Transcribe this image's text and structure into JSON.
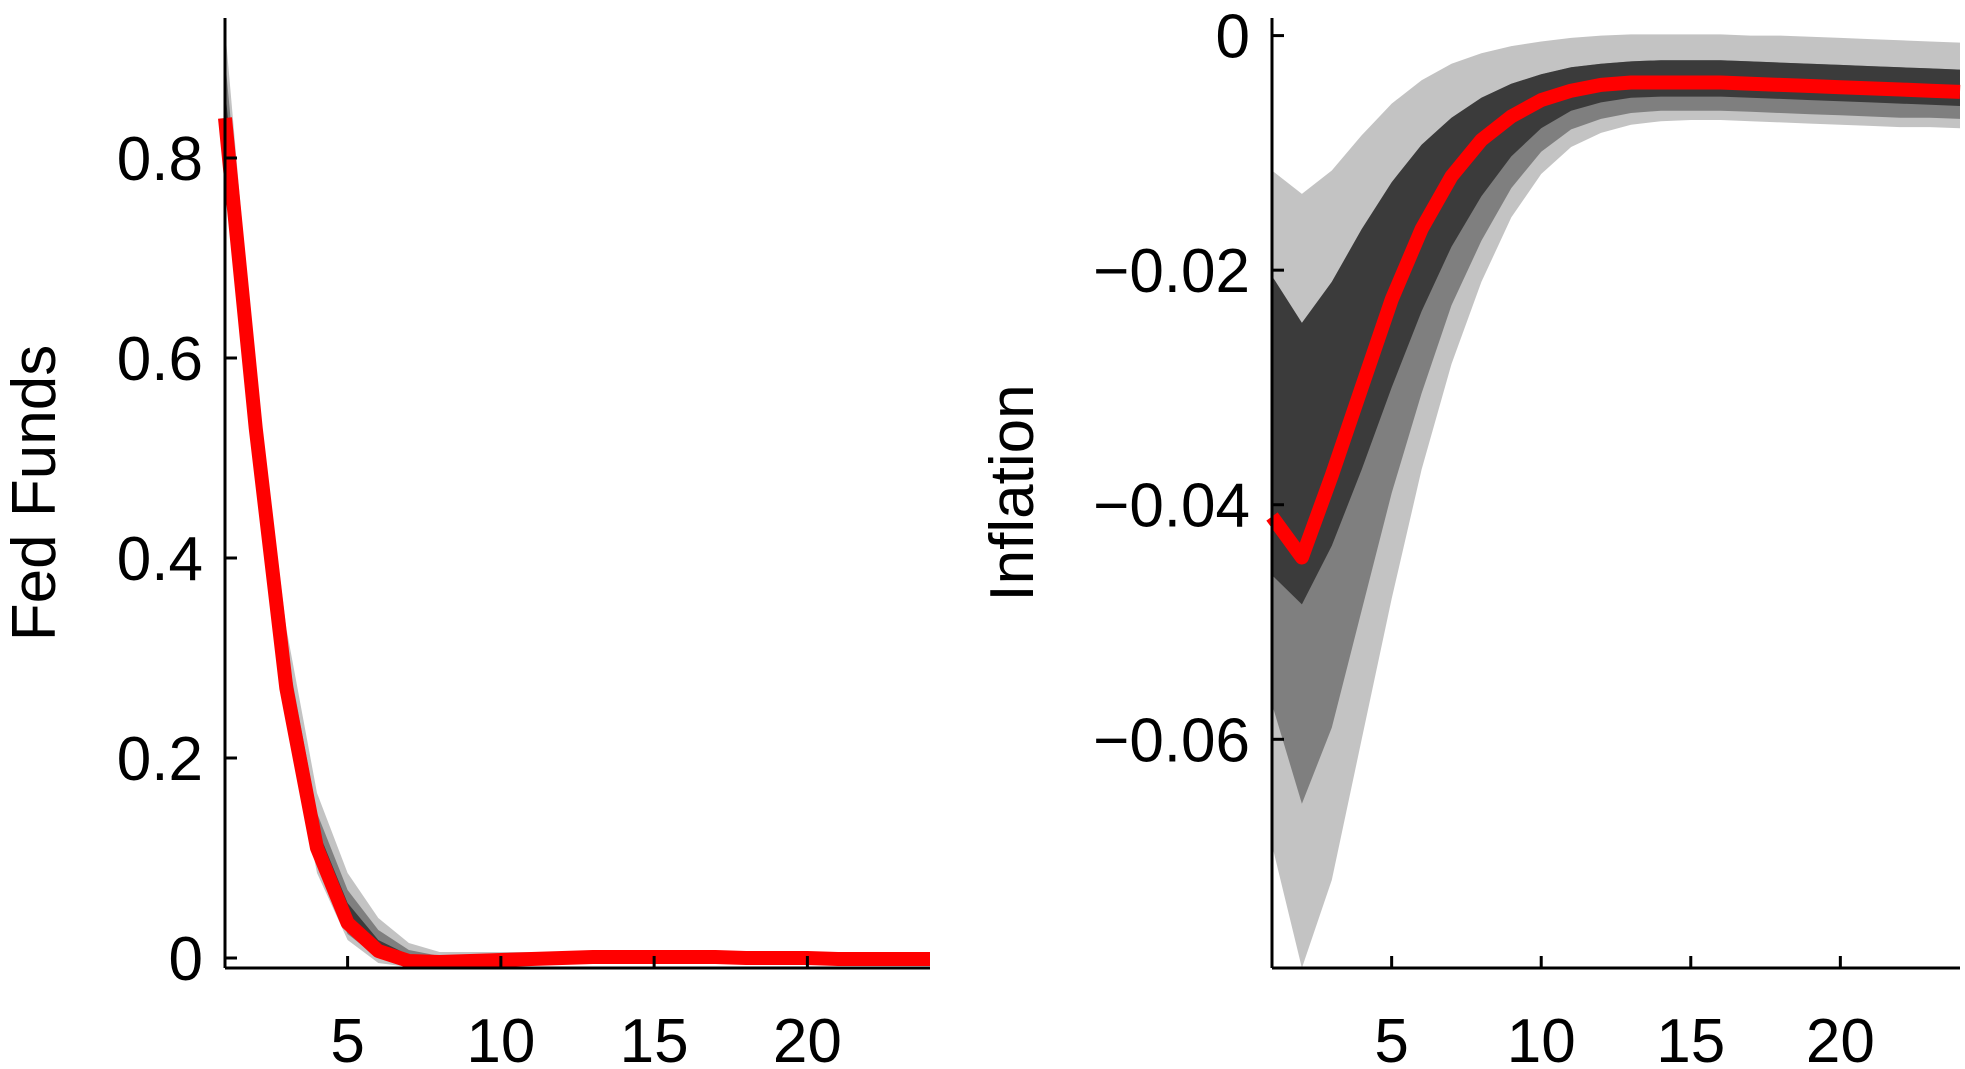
{
  "chart_data": [
    {
      "type": "area",
      "title": "",
      "xlabel": "",
      "ylabel": "Fed Funds",
      "xlim": [
        1,
        24
      ],
      "ylim": [
        -0.01,
        0.94
      ],
      "xticks": [
        5,
        10,
        15,
        20
      ],
      "xtick_labels": [
        "5",
        "10",
        "15",
        "20"
      ],
      "yticks": [
        0,
        0.2,
        0.4,
        0.6,
        0.8
      ],
      "ytick_labels": [
        "0",
        "0.2",
        "0.4",
        "0.6",
        "0.8"
      ],
      "x": [
        1,
        2,
        3,
        4,
        5,
        6,
        7,
        8,
        9,
        10,
        11,
        12,
        13,
        14,
        15,
        16,
        17,
        18,
        19,
        20,
        21,
        22,
        23,
        24
      ],
      "series": [
        {
          "values": [
            0.84,
            0.53,
            0.27,
            0.11,
            0.035,
            0.007,
            -0.003,
            -0.004,
            -0.003,
            -0.002,
            -0.001,
            0,
            0.001,
            0.001,
            0.001,
            0.001,
            0.001,
            0,
            0,
            0,
            -0.001,
            -0.001,
            -0.001,
            -0.001
          ]
        }
      ],
      "bands": [
        {
          "level": "outer",
          "color": "#c3c3c3",
          "lower": [
            0.8,
            0.5,
            0.24,
            0.085,
            0.018,
            -0.005,
            -0.009,
            -0.009,
            -0.008,
            -0.007,
            -0.006,
            -0.005,
            -0.004,
            -0.004,
            -0.004,
            -0.004,
            -0.004,
            -0.004,
            -0.004,
            -0.005,
            -0.005,
            -0.005,
            -0.005,
            -0.005
          ],
          "upper": [
            0.93,
            0.58,
            0.33,
            0.165,
            0.085,
            0.04,
            0.015,
            0.006,
            0.006,
            0.006,
            0.006,
            0.006,
            0.006,
            0.006,
            0.006,
            0.006,
            0.006,
            0.006,
            0.005,
            0.005,
            0.005,
            0.004,
            0.004,
            0.004
          ]
        },
        {
          "level": "middle",
          "color": "#7f7f7f",
          "lower": [
            0.81,
            0.51,
            0.25,
            0.093,
            0.024,
            0,
            -0.007,
            -0.007,
            -0.006,
            -0.005,
            -0.004,
            -0.003,
            -0.002,
            -0.002,
            -0.002,
            -0.002,
            -0.002,
            -0.002,
            -0.003,
            -0.003,
            -0.003,
            -0.003,
            -0.003,
            -0.003
          ],
          "upper": [
            0.9,
            0.565,
            0.31,
            0.145,
            0.068,
            0.028,
            0.008,
            0.002,
            0.003,
            0.003,
            0.004,
            0.004,
            0.004,
            0.004,
            0.004,
            0.004,
            0.004,
            0.004,
            0.003,
            0.003,
            0.003,
            0.002,
            0.002,
            0.002
          ]
        },
        {
          "level": "inner",
          "color": "#3b3b3b",
          "lower": [
            0.83,
            0.52,
            0.26,
            0.1,
            0.03,
            0.003,
            -0.005,
            -0.005,
            -0.004,
            -0.003,
            -0.002,
            -0.001,
            0,
            0,
            0,
            0,
            0,
            0,
            -0.001,
            -0.001,
            -0.002,
            -0.002,
            -0.002,
            -0.002
          ],
          "upper": [
            0.87,
            0.55,
            0.29,
            0.13,
            0.055,
            0.018,
            0.003,
            0,
            0,
            0,
            0.001,
            0.001,
            0.002,
            0.002,
            0.002,
            0.002,
            0.002,
            0.002,
            0.001,
            0.001,
            0.001,
            0,
            0,
            0
          ]
        }
      ],
      "line_color": "#ff0000",
      "grid": false
    },
    {
      "type": "area",
      "title": "",
      "xlabel": "",
      "ylabel": "Inflation",
      "xlim": [
        1,
        24
      ],
      "ylim": [
        -0.0795,
        0.0015
      ],
      "xticks": [
        5,
        10,
        15,
        20
      ],
      "xtick_labels": [
        "5",
        "10",
        "15",
        "20"
      ],
      "yticks": [
        0,
        -0.02,
        -0.04,
        -0.06
      ],
      "ytick_labels": [
        "0",
        "−0.02",
        "−0.04",
        "−0.06"
      ],
      "x": [
        1,
        2,
        3,
        4,
        5,
        6,
        7,
        8,
        9,
        10,
        11,
        12,
        13,
        14,
        15,
        16,
        17,
        18,
        19,
        20,
        21,
        22,
        23,
        24
      ],
      "series": [
        {
          "values": [
            -0.041,
            -0.0445,
            -0.0375,
            -0.03,
            -0.0225,
            -0.0165,
            -0.012,
            -0.0089,
            -0.0069,
            -0.0055,
            -0.0047,
            -0.0042,
            -0.004,
            -0.004,
            -0.004,
            -0.004,
            -0.0041,
            -0.0042,
            -0.0043,
            -0.0044,
            -0.0045,
            -0.0046,
            -0.0047,
            -0.0048
          ]
        }
      ],
      "bands": [
        {
          "level": "outer",
          "color": "#c3c3c3",
          "lower": [
            -0.069,
            -0.0795,
            -0.072,
            -0.06,
            -0.048,
            -0.037,
            -0.028,
            -0.021,
            -0.0155,
            -0.0118,
            -0.0095,
            -0.0083,
            -0.0076,
            -0.0073,
            -0.0072,
            -0.0072,
            -0.0073,
            -0.0074,
            -0.0075,
            -0.0076,
            -0.0077,
            -0.0078,
            -0.0078,
            -0.0079
          ],
          "upper": [
            -0.0115,
            -0.0135,
            -0.0115,
            -0.0085,
            -0.0058,
            -0.0038,
            -0.0024,
            -0.0015,
            -0.0009,
            -0.0005,
            -0.0002,
            0,
            0.0001,
            0.0001,
            0.0001,
            0.0001,
            0,
            0,
            -0.0001,
            -0.0002,
            -0.0003,
            -0.0004,
            -0.0005,
            -0.0006
          ]
        },
        {
          "level": "middle",
          "color": "#7f7f7f",
          "lower": [
            -0.057,
            -0.0655,
            -0.059,
            -0.049,
            -0.039,
            -0.0305,
            -0.023,
            -0.0175,
            -0.013,
            -0.0099,
            -0.008,
            -0.0071,
            -0.0066,
            -0.0064,
            -0.0064,
            -0.0064,
            -0.0065,
            -0.0066,
            -0.0067,
            -0.0068,
            -0.0069,
            -0.007,
            -0.007,
            -0.0071
          ]
        },
        {
          "level": "inner",
          "color": "#3b3b3b",
          "lower": [
            -0.046,
            -0.0485,
            -0.0435,
            -0.037,
            -0.03,
            -0.0235,
            -0.018,
            -0.0137,
            -0.0103,
            -0.0079,
            -0.0064,
            -0.0057,
            -0.0053,
            -0.0052,
            -0.0052,
            -0.0052,
            -0.0053,
            -0.0054,
            -0.0055,
            -0.0056,
            -0.0057,
            -0.0058,
            -0.0059,
            -0.006
          ],
          "upper": [
            -0.0205,
            -0.0245,
            -0.021,
            -0.0165,
            -0.0125,
            -0.0093,
            -0.007,
            -0.0053,
            -0.0041,
            -0.0033,
            -0.0027,
            -0.0024,
            -0.0022,
            -0.0021,
            -0.0021,
            -0.0021,
            -0.0022,
            -0.0023,
            -0.0024,
            -0.0025,
            -0.0026,
            -0.0027,
            -0.0028,
            -0.0029
          ]
        }
      ],
      "line_color": "#ff0000",
      "grid": false
    }
  ]
}
